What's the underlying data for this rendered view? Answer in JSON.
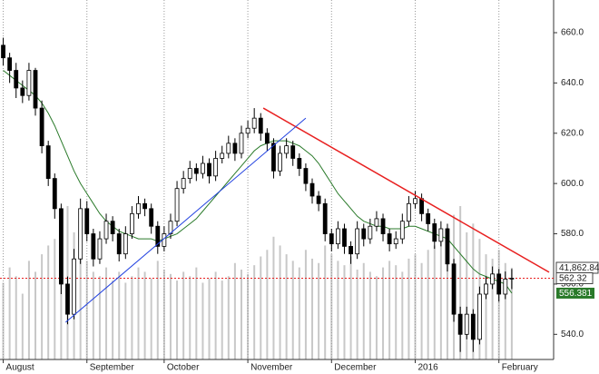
{
  "chart_data": {
    "type": "candlestick",
    "xlim": [
      -0.5,
      85.5
    ],
    "xticks": [
      {
        "value": 0,
        "label": "August"
      },
      {
        "value": 13,
        "label": "September"
      },
      {
        "value": 25,
        "label": "October"
      },
      {
        "value": 38,
        "label": "November"
      },
      {
        "value": 51,
        "label": "December"
      },
      {
        "value": 64,
        "label": "2016"
      },
      {
        "value": 77,
        "label": "February"
      }
    ],
    "ylim": [
      530,
      673
    ],
    "yticks": [
      {
        "value": 540,
        "label": "540.0"
      },
      {
        "value": 560,
        "label": "560.0"
      },
      {
        "value": 580,
        "label": "580.0"
      },
      {
        "value": 600,
        "label": "600.0"
      },
      {
        "value": 620,
        "label": "620.0"
      },
      {
        "value": 640,
        "label": "640.0"
      },
      {
        "value": 660,
        "label": "660.0"
      }
    ],
    "y2lim": [
      0,
      164000
    ],
    "grid": true,
    "candle_color": "#000000",
    "candles": [
      [
        655,
        658,
        647,
        650
      ],
      [
        650,
        652,
        640,
        645
      ],
      [
        645,
        648,
        634,
        638
      ],
      [
        638,
        641,
        632,
        635
      ],
      [
        635,
        648,
        633,
        645
      ],
      [
        645,
        646,
        627,
        630
      ],
      [
        630,
        633,
        612,
        615
      ],
      [
        615,
        617,
        599,
        602
      ],
      [
        602,
        604,
        586,
        590
      ],
      [
        590,
        592,
        556,
        560
      ],
      [
        560,
        563,
        544,
        548
      ],
      [
        548,
        574,
        546,
        570
      ],
      [
        570,
        594,
        568,
        590
      ],
      [
        590,
        593,
        577,
        580
      ],
      [
        580,
        582,
        567,
        570
      ],
      [
        570,
        581,
        568,
        578
      ],
      [
        578,
        588,
        576,
        585
      ],
      [
        585,
        587,
        577,
        580
      ],
      [
        580,
        582,
        569,
        572
      ],
      [
        572,
        583,
        570,
        580
      ],
      [
        580,
        591,
        578,
        588
      ],
      [
        588,
        595,
        586,
        592
      ],
      [
        592,
        594,
        587,
        590
      ],
      [
        590,
        592,
        580,
        583
      ],
      [
        583,
        585,
        572,
        575
      ],
      [
        575,
        583,
        573,
        580
      ],
      [
        580,
        588,
        578,
        585
      ],
      [
        585,
        601,
        583,
        598
      ],
      [
        598,
        605,
        596,
        602
      ],
      [
        602,
        609,
        600,
        606
      ],
      [
        606,
        608,
        601,
        604
      ],
      [
        604,
        611,
        602,
        608
      ],
      [
        608,
        610,
        600,
        603
      ],
      [
        603,
        613,
        601,
        610
      ],
      [
        610,
        615,
        608,
        612
      ],
      [
        612,
        619,
        610,
        616
      ],
      [
        616,
        618,
        609,
        612
      ],
      [
        612,
        623,
        610,
        620
      ],
      [
        620,
        625,
        618,
        622
      ],
      [
        622,
        630,
        620,
        626
      ],
      [
        626,
        628,
        617,
        620
      ],
      [
        620,
        622,
        613,
        616
      ],
      [
        616,
        618,
        602,
        605
      ],
      [
        605,
        615,
        603,
        612
      ],
      [
        612,
        618,
        610,
        615
      ],
      [
        615,
        617,
        607,
        610
      ],
      [
        610,
        612,
        603,
        606
      ],
      [
        606,
        608,
        597,
        600
      ],
      [
        600,
        602,
        592,
        595
      ],
      [
        595,
        597,
        589,
        592
      ],
      [
        592,
        594,
        577,
        580
      ],
      [
        580,
        582,
        573,
        576
      ],
      [
        576,
        585,
        574,
        582
      ],
      [
        582,
        584,
        572,
        575
      ],
      [
        575,
        577,
        568,
        572
      ],
      [
        572,
        585,
        570,
        582
      ],
      [
        582,
        584,
        575,
        578
      ],
      [
        578,
        586,
        576,
        583
      ],
      [
        583,
        589,
        581,
        586
      ],
      [
        586,
        588,
        577,
        580
      ],
      [
        580,
        582,
        573,
        576
      ],
      [
        576,
        581,
        574,
        578
      ],
      [
        578,
        588,
        576,
        585
      ],
      [
        585,
        595,
        583,
        592
      ],
      [
        592,
        597,
        590,
        594
      ],
      [
        594,
        596,
        585,
        588
      ],
      [
        588,
        590,
        581,
        584
      ],
      [
        584,
        586,
        574,
        577
      ],
      [
        577,
        585,
        575,
        582
      ],
      [
        582,
        584,
        565,
        568
      ],
      [
        568,
        570,
        545,
        548
      ],
      [
        548,
        551,
        533,
        540
      ],
      [
        540,
        551,
        538,
        548
      ],
      [
        548,
        550,
        533,
        538
      ],
      [
        538,
        559,
        536,
        556
      ],
      [
        556,
        563,
        554,
        560
      ],
      [
        560,
        567,
        558,
        564
      ],
      [
        564,
        566,
        553,
        556
      ],
      [
        556,
        565,
        554,
        562
      ],
      [
        562,
        566,
        558,
        562.32
      ]
    ],
    "ma": {
      "color": "#2a7a2a",
      "values": [
        645,
        643,
        641,
        639,
        637,
        635,
        632,
        628,
        623,
        617,
        611,
        605,
        600,
        596,
        592,
        588,
        585,
        583,
        581,
        580,
        579,
        578,
        578,
        578,
        577,
        578,
        579,
        580,
        582,
        584,
        586,
        589,
        592,
        595,
        598,
        601,
        604,
        607,
        610,
        613,
        615,
        616,
        617,
        617,
        617,
        616,
        615,
        613,
        611,
        608,
        604,
        600,
        596,
        593,
        590,
        587,
        585,
        584,
        583,
        583,
        582,
        582,
        582,
        583,
        583,
        582,
        581,
        580,
        579,
        578,
        575,
        572,
        569,
        566,
        564,
        563,
        562,
        561,
        560,
        556.381
      ]
    },
    "volume": {
      "color": "#c8c8c8",
      "values": [
        35000,
        42000,
        38000,
        30000,
        45000,
        40000,
        48000,
        52000,
        55000,
        60000,
        70000,
        58000,
        50000,
        45000,
        40000,
        38000,
        42000,
        36000,
        40000,
        35000,
        38000,
        42000,
        40000,
        37000,
        45000,
        41000,
        39000,
        36000,
        40000,
        38000,
        42000,
        35000,
        37000,
        40000,
        36000,
        38000,
        44000,
        41000,
        39000,
        43000,
        47000,
        50000,
        56000,
        52000,
        48000,
        45000,
        42000,
        50000,
        46000,
        44000,
        52000,
        48000,
        45000,
        43000,
        47000,
        41000,
        44000,
        40000,
        38000,
        42000,
        45000,
        43000,
        40000,
        46000,
        48000,
        44000,
        50000,
        52000,
        55000,
        60000,
        66000,
        70000,
        58000,
        62000,
        55000,
        48000,
        46000,
        50000,
        44000,
        41862.84
      ],
      "value_labels": {
        "79": "41,862.84"
      }
    },
    "trendlines": [
      {
        "color": "#e82020",
        "x": [
          40.4,
          84.8
        ],
        "values": [
          630,
          564.7
        ]
      },
      {
        "color": "#2040e0",
        "x": [
          9.7,
          47
        ],
        "values": [
          544.8,
          626
        ]
      }
    ],
    "last_line_color": "#e82020"
  }
}
